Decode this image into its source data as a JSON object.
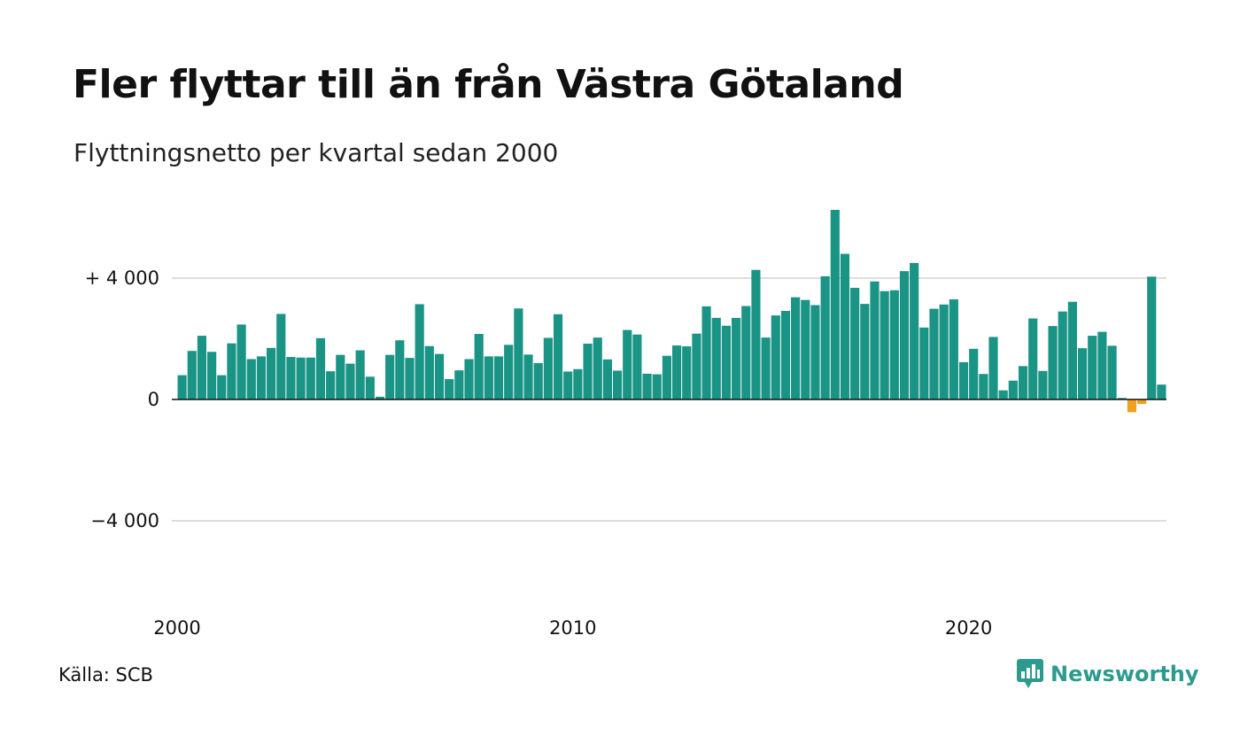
{
  "title": "Fler flyttar till än från Västra Götaland",
  "subtitle": "Flyttningsnetto per kvartal sedan 2000",
  "source": "Källa: SCB",
  "brand": {
    "name": "Newsworthy",
    "icon": "newsworthy-logo-icon",
    "color": "#2d9a8e"
  },
  "colors": {
    "positive": "#1a9485",
    "negative": "#f0a01e",
    "grid": "#dddddd",
    "zero_line": "#111111"
  },
  "chart_data": {
    "type": "bar",
    "title": "Fler flyttar till än från Västra Götaland",
    "subtitle": "Flyttningsnetto per kvartal sedan 2000",
    "xlabel": "",
    "ylabel": "",
    "ylim": [
      -6500,
      6500
    ],
    "grid": true,
    "y_ticks": [
      {
        "value": 4000,
        "label": "+ 4 000"
      },
      {
        "value": 0,
        "label": "0"
      },
      {
        "value": -4000,
        "label": "−4 000"
      }
    ],
    "x_ticks": [
      {
        "value": 2000,
        "label": "2000"
      },
      {
        "value": 2010,
        "label": "2010"
      },
      {
        "value": 2020,
        "label": "2020"
      }
    ],
    "start_year": 2000,
    "periods_per_year": 4,
    "values": [
      800,
      1600,
      2100,
      1570,
      800,
      1850,
      2470,
      1330,
      1420,
      1700,
      2820,
      1400,
      1380,
      1380,
      2020,
      930,
      1470,
      1180,
      1620,
      750,
      90,
      1470,
      1950,
      1370,
      3140,
      1760,
      1500,
      670,
      960,
      1330,
      2160,
      1420,
      1420,
      1800,
      3000,
      1480,
      1200,
      2030,
      2810,
      920,
      1000,
      1840,
      2040,
      1320,
      950,
      2290,
      2140,
      850,
      830,
      1440,
      1780,
      1750,
      2170,
      3070,
      2690,
      2430,
      2690,
      3080,
      4270,
      2040,
      2770,
      2920,
      3370,
      3280,
      3110,
      4060,
      6250,
      4800,
      3680,
      3150,
      3890,
      3570,
      3600,
      4230,
      4500,
      2370,
      2990,
      3130,
      3300,
      1230,
      1670,
      840,
      2060,
      300,
      620,
      1100,
      2670,
      940,
      2420,
      2900,
      3220,
      1690,
      2100,
      2230,
      1770,
      50,
      -420,
      -150,
      4050,
      490
    ]
  }
}
